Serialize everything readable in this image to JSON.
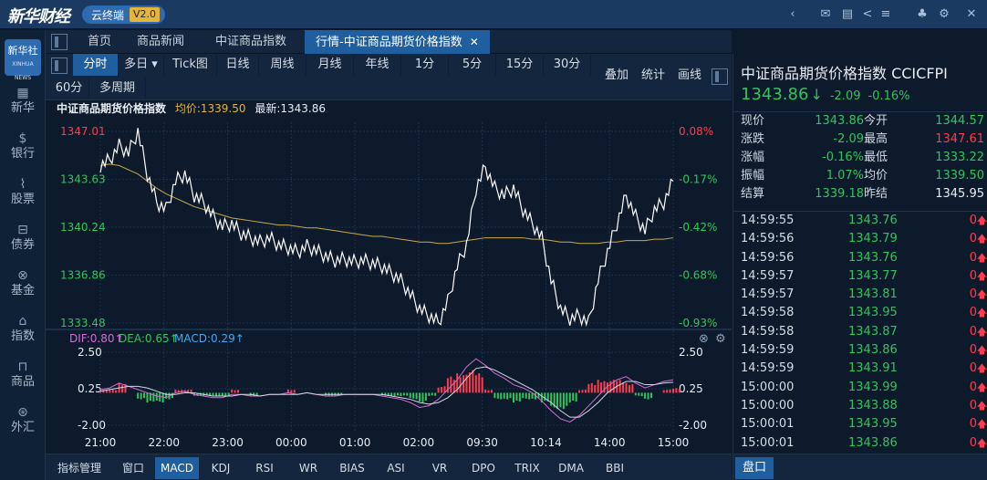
{
  "app": {
    "brand": "新华财经",
    "product": "云终端",
    "version": "V2.0"
  },
  "nav": [
    {
      "icon": "bank-icon",
      "label": "新华"
    },
    {
      "icon": "coin-icon",
      "label": "银行"
    },
    {
      "icon": "stock-icon",
      "label": "股票"
    },
    {
      "icon": "bond-icon",
      "label": "债券"
    },
    {
      "icon": "fund-icon",
      "label": "基金"
    },
    {
      "icon": "index-icon",
      "label": "指数"
    },
    {
      "icon": "commodity-icon",
      "label": "商品"
    },
    {
      "icon": "forex-icon",
      "label": "外汇"
    }
  ],
  "logo": {
    "text": "新华社",
    "small": "XINHUA NEWS"
  },
  "tabs": [
    {
      "label": "首页"
    },
    {
      "label": "商品新闻"
    },
    {
      "label": "中证商品指数"
    },
    {
      "label": "行情-中证商品期货价格指数",
      "close": "✕"
    }
  ],
  "periods": [
    "分时",
    "多日",
    "Tick图",
    "日线",
    "周线",
    "月线",
    "年线",
    "1分",
    "5分",
    "15分",
    "30分",
    "60分",
    "多周期"
  ],
  "right_tools": [
    "叠加",
    "统计",
    "画线"
  ],
  "info": {
    "name": "中证商品期货价格指数",
    "avg": "均价:1339.50",
    "last": "最新:1343.86"
  },
  "macd_legend": {
    "dif": "DIF:0.80↑",
    "dea": "DEA:0.65↑",
    "macd": "MACD:0.29↑"
  },
  "indicators": [
    "指标管理",
    "窗口",
    "MACD",
    "KDJ",
    "RSI",
    "WR",
    "BIAS",
    "ASI",
    "VR",
    "DPO",
    "TRIX",
    "DMA",
    "BBI"
  ],
  "panel": {
    "title": "中证商品期货价格指数 CCICFPI",
    "price": "1343.86",
    "arrow": "↓",
    "change": "-2.09",
    "pct": "-0.16%",
    "quote": [
      {
        "l1": "现价",
        "v1": "1343.86",
        "l2": "今开",
        "v2": "1344.57",
        "c2": "#31c45d"
      },
      {
        "l1": "涨跌",
        "v1": "-2.09",
        "l2": "最高",
        "v2": "1347.61",
        "c2": "#ff3b4d"
      },
      {
        "l1": "涨幅",
        "v1": "-0.16%",
        "l2": "最低",
        "v2": "1333.22",
        "c2": "#31c45d"
      },
      {
        "l1": "振幅",
        "v1": "1.07%",
        "l2": "均价",
        "v2": "1339.50",
        "c2": "#31c45d"
      },
      {
        "l1": "结算",
        "v1": "1339.18",
        "l2": "昨结",
        "v2": "1345.95",
        "c2": "#e6edf5"
      }
    ],
    "ticks": [
      {
        "t": "14:59:55",
        "p": "1343.76",
        "v": "0"
      },
      {
        "t": "14:59:56",
        "p": "1343.79",
        "v": "0"
      },
      {
        "t": "14:59:56",
        "p": "1343.76",
        "v": "0"
      },
      {
        "t": "14:59:57",
        "p": "1343.77",
        "v": "0"
      },
      {
        "t": "14:59:57",
        "p": "1343.81",
        "v": "0"
      },
      {
        "t": "14:59:58",
        "p": "1343.95",
        "v": "0"
      },
      {
        "t": "14:59:58",
        "p": "1343.87",
        "v": "0"
      },
      {
        "t": "14:59:59",
        "p": "1343.86",
        "v": "0"
      },
      {
        "t": "14:59:59",
        "p": "1343.91",
        "v": "0"
      },
      {
        "t": "15:00:00",
        "p": "1343.99",
        "v": "0"
      },
      {
        "t": "15:00:00",
        "p": "1343.88",
        "v": "0"
      },
      {
        "t": "15:00:01",
        "p": "1343.95",
        "v": "0"
      },
      {
        "t": "15:00:01",
        "p": "1343.86",
        "v": "0"
      }
    ],
    "tick_arrow": "🡅",
    "bottom_tab": "盘口"
  },
  "colors": {
    "up": "#ff3b4d",
    "down": "#31c45d",
    "avg": "#c9a84a",
    "price": "#ffffff",
    "dif": "#d46bd6",
    "dea": "#31c45d",
    "macd": "#3fa9f5"
  },
  "chart_data": [
    {
      "type": "line",
      "name": "price",
      "y_left_ticks": [
        "1347.01",
        "1343.63",
        "1340.24",
        "1336.86",
        "1333.48"
      ],
      "y_right_ticks": [
        "0.08%",
        "-0.17%",
        "-0.42%",
        "-0.68%",
        "-0.93%"
      ],
      "x_ticks": [
        "21:00",
        "22:00",
        "23:00",
        "00:00",
        "01:00",
        "02:00",
        "09:30",
        "10:14",
        "14:00",
        "15:00"
      ],
      "ylim": [
        1333.48,
        1347.01
      ],
      "price": [
        1344.6,
        1345.0,
        1346.0,
        1345.5,
        1347.0,
        1344.0,
        1342.0,
        1341.5,
        1343.5,
        1344.0,
        1342.5,
        1342.0,
        1341.0,
        1340.3,
        1340.5,
        1339.8,
        1339.5,
        1339.2,
        1339.5,
        1339.0,
        1338.8,
        1338.5,
        1338.9,
        1338.6,
        1338.2,
        1337.9,
        1338.0,
        1337.8,
        1337.9,
        1337.7,
        1337.5,
        1337.0,
        1336.5,
        1335.5,
        1334.5,
        1334.0,
        1333.5,
        1335.0,
        1337.5,
        1339.0,
        1343.0,
        1344.5,
        1343.0,
        1342.5,
        1343.0,
        1341.5,
        1340.5,
        1339.5,
        1336.5,
        1334.5,
        1333.8,
        1334.0,
        1333.5,
        1336.5,
        1338.5,
        1340.5,
        1342.5,
        1341.0,
        1340.0,
        1341.5,
        1342.0,
        1343.5
      ],
      "avg": [
        1344.6,
        1344.7,
        1344.6,
        1344.3,
        1344.0,
        1343.5,
        1343.0,
        1342.6,
        1342.3,
        1342.0,
        1341.7,
        1341.5,
        1341.3,
        1341.1,
        1340.9,
        1340.8,
        1340.7,
        1340.6,
        1340.5,
        1340.4,
        1340.4,
        1340.3,
        1340.2,
        1340.2,
        1340.1,
        1340.0,
        1339.9,
        1339.8,
        1339.7,
        1339.6,
        1339.6,
        1339.5,
        1339.4,
        1339.3,
        1339.2,
        1339.2,
        1339.1,
        1339.1,
        1339.2,
        1339.3,
        1339.4,
        1339.5,
        1339.5,
        1339.5,
        1339.5,
        1339.5,
        1339.4,
        1339.4,
        1339.3,
        1339.2,
        1339.2,
        1339.1,
        1339.1,
        1339.1,
        1339.2,
        1339.2,
        1339.3,
        1339.3,
        1339.3,
        1339.4,
        1339.4,
        1339.5
      ]
    },
    {
      "type": "bar",
      "name": "MACD",
      "y_ticks": [
        "2.50",
        "0.25",
        "-2.00"
      ],
      "ylim": [
        -2.0,
        2.5
      ],
      "dif": [
        0.2,
        0.3,
        0.6,
        0.4,
        0.2,
        0.0,
        -0.2,
        -0.3,
        0.0,
        0.1,
        -0.1,
        -0.2,
        -0.3,
        -0.3,
        -0.1,
        -0.1,
        -0.2,
        -0.2,
        -0.1,
        -0.1,
        0.0,
        -0.1,
        0.0,
        -0.1,
        -0.2,
        -0.2,
        -0.1,
        -0.1,
        -0.1,
        -0.1,
        -0.2,
        -0.3,
        -0.4,
        -0.6,
        -0.9,
        -0.8,
        -0.4,
        0.2,
        0.8,
        1.6,
        2.1,
        1.7,
        1.2,
        0.9,
        0.5,
        0.3,
        0.0,
        -0.5,
        -1.1,
        -1.6,
        -1.8,
        -1.4,
        -0.8,
        -0.2,
        0.4,
        0.8,
        1.0,
        0.6,
        0.3,
        0.5,
        0.7,
        0.8
      ],
      "dea": [
        0.1,
        0.2,
        0.3,
        0.4,
        0.4,
        0.3,
        0.1,
        -0.1,
        -0.1,
        0.0,
        0.0,
        -0.1,
        -0.2,
        -0.2,
        -0.2,
        -0.1,
        -0.1,
        -0.2,
        -0.1,
        -0.1,
        -0.1,
        -0.1,
        0.0,
        -0.1,
        -0.1,
        -0.1,
        -0.1,
        -0.1,
        -0.1,
        -0.1,
        -0.1,
        -0.2,
        -0.3,
        -0.4,
        -0.6,
        -0.7,
        -0.6,
        -0.3,
        0.2,
        0.9,
        1.5,
        1.6,
        1.4,
        1.1,
        0.8,
        0.5,
        0.2,
        -0.2,
        -0.6,
        -1.1,
        -1.5,
        -1.5,
        -1.1,
        -0.6,
        0.0,
        0.4,
        0.7,
        0.7,
        0.5,
        0.5,
        0.6,
        0.65
      ],
      "macd": [
        0.2,
        0.2,
        0.6,
        0.0,
        -0.4,
        -0.6,
        -0.6,
        -0.4,
        0.2,
        0.2,
        -0.2,
        -0.2,
        -0.2,
        -0.2,
        0.2,
        0.0,
        -0.2,
        0.0,
        0.0,
        0.0,
        0.2,
        0.0,
        0.0,
        0.0,
        -0.2,
        -0.2,
        0.0,
        0.0,
        0.0,
        0.0,
        -0.2,
        -0.2,
        -0.2,
        -0.4,
        -0.6,
        -0.2,
        0.4,
        1.0,
        1.2,
        1.4,
        1.2,
        0.2,
        -0.4,
        -0.4,
        -0.6,
        -0.4,
        -0.4,
        -0.6,
        -1.0,
        -1.0,
        -0.6,
        0.2,
        0.6,
        0.8,
        0.8,
        0.8,
        0.6,
        -0.2,
        -0.4,
        0.0,
        0.2,
        0.29
      ]
    }
  ]
}
